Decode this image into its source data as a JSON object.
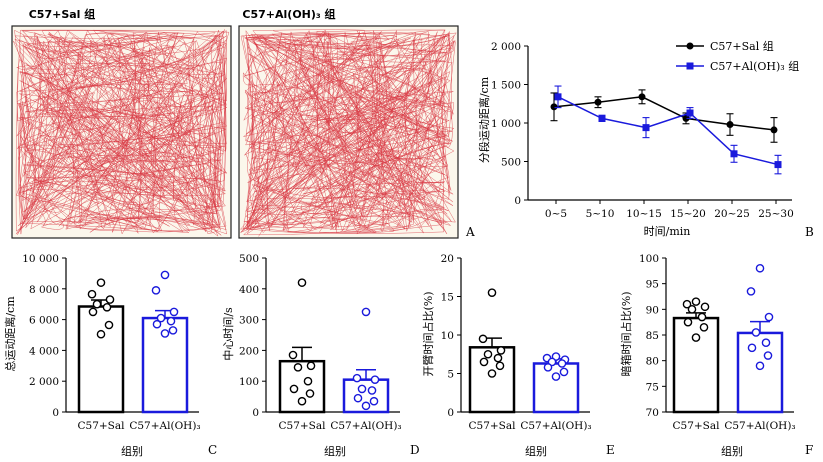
{
  "panels": {
    "A": {
      "letter": "A",
      "track_titles": [
        "C57+Sal 组",
        "C57+Al(OH)₃ 组"
      ]
    },
    "B": {
      "letter": "B",
      "ylabel": "分段运动距离/cm",
      "xlabel": "时间/min",
      "legend": [
        "C57+Sal 组",
        "C57+Al(OH)₃ 组"
      ]
    },
    "C": {
      "letter": "C",
      "ylabel": "总运动距离/cm",
      "xlabel": "组别"
    },
    "D": {
      "letter": "D",
      "ylabel": "中心时间/s",
      "xlabel": "组别"
    },
    "E": {
      "letter": "E",
      "ylabel": "开臂时间占比(%)",
      "xlabel": "组别"
    },
    "F": {
      "letter": "F",
      "ylabel": "暗箱时间占比(%)",
      "xlabel": "组别"
    }
  },
  "colors": {
    "sal": "#000000",
    "aloh": "#1a1adc",
    "track": "#d93a44"
  },
  "chart_data": [
    {
      "id": "B",
      "type": "line",
      "categories": [
        "0~5",
        "5~10",
        "10~15",
        "15~20",
        "20~25",
        "25~30"
      ],
      "yticks": [
        "0",
        "500",
        "1 000",
        "1 500",
        "2 000"
      ],
      "ylim": [
        0,
        2000
      ],
      "series": [
        {
          "name": "C57+Sal 组",
          "values": [
            1210,
            1270,
            1340,
            1060,
            980,
            910
          ],
          "err": [
            180,
            70,
            90,
            70,
            140,
            160
          ]
        },
        {
          "name": "C57+Al(OH)₃ 组",
          "values": [
            1340,
            1060,
            940,
            1130,
            600,
            460
          ],
          "err": [
            140,
            40,
            130,
            70,
            110,
            120
          ]
        }
      ]
    },
    {
      "id": "C",
      "type": "bar",
      "categories": [
        "C57+Sal",
        "C57+Al(OH)₃"
      ],
      "yticks": [
        "0",
        "2 000",
        "4 000",
        "6 000",
        "8 000",
        "10 000"
      ],
      "ylim": [
        0,
        10000
      ],
      "values": [
        6850,
        6100
      ],
      "err": [
        420,
        480
      ],
      "points": [
        [
          8400,
          7650,
          7300,
          7000,
          6800,
          6500,
          5650,
          5050
        ],
        [
          8900,
          7900,
          6500,
          6100,
          5900,
          5700,
          5300,
          5100
        ]
      ]
    },
    {
      "id": "D",
      "type": "bar",
      "categories": [
        "C57+Sal",
        "C57+Al(OH)₃"
      ],
      "yticks": [
        "0",
        "100",
        "200",
        "300",
        "400",
        "500"
      ],
      "ylim": [
        0,
        500
      ],
      "values": [
        165,
        105
      ],
      "err": [
        45,
        32
      ],
      "points": [
        [
          420,
          185,
          150,
          145,
          100,
          75,
          60,
          35
        ],
        [
          325,
          110,
          105,
          75,
          70,
          45,
          35,
          20
        ]
      ]
    },
    {
      "id": "E",
      "type": "bar",
      "categories": [
        "C57+Sal",
        "C57+Al(OH)₃"
      ],
      "yticks": [
        "0",
        "5",
        "10",
        "15",
        "20"
      ],
      "ylim": [
        0,
        20
      ],
      "values": [
        8.4,
        6.3
      ],
      "err": [
        1.2,
        0.6
      ],
      "points": [
        [
          15.5,
          9.5,
          8.0,
          7.5,
          7.0,
          6.5,
          6.0,
          5.0
        ],
        [
          7.2,
          7.0,
          6.8,
          6.5,
          6.3,
          5.8,
          5.2,
          4.6
        ]
      ]
    },
    {
      "id": "F",
      "type": "bar",
      "categories": [
        "C57+Sal",
        "C57+Al(OH)₃"
      ],
      "yticks": [
        "70",
        "75",
        "80",
        "85",
        "90",
        "95",
        "100"
      ],
      "ylim": [
        70,
        100
      ],
      "values": [
        88.3,
        85.4
      ],
      "err": [
        1.0,
        2.2
      ],
      "points": [
        [
          91.5,
          91.0,
          90.5,
          90.0,
          88.5,
          87.5,
          86.5,
          84.5
        ],
        [
          98.0,
          93.5,
          88.5,
          85.5,
          83.5,
          82.5,
          81.0,
          79.0
        ]
      ]
    }
  ]
}
